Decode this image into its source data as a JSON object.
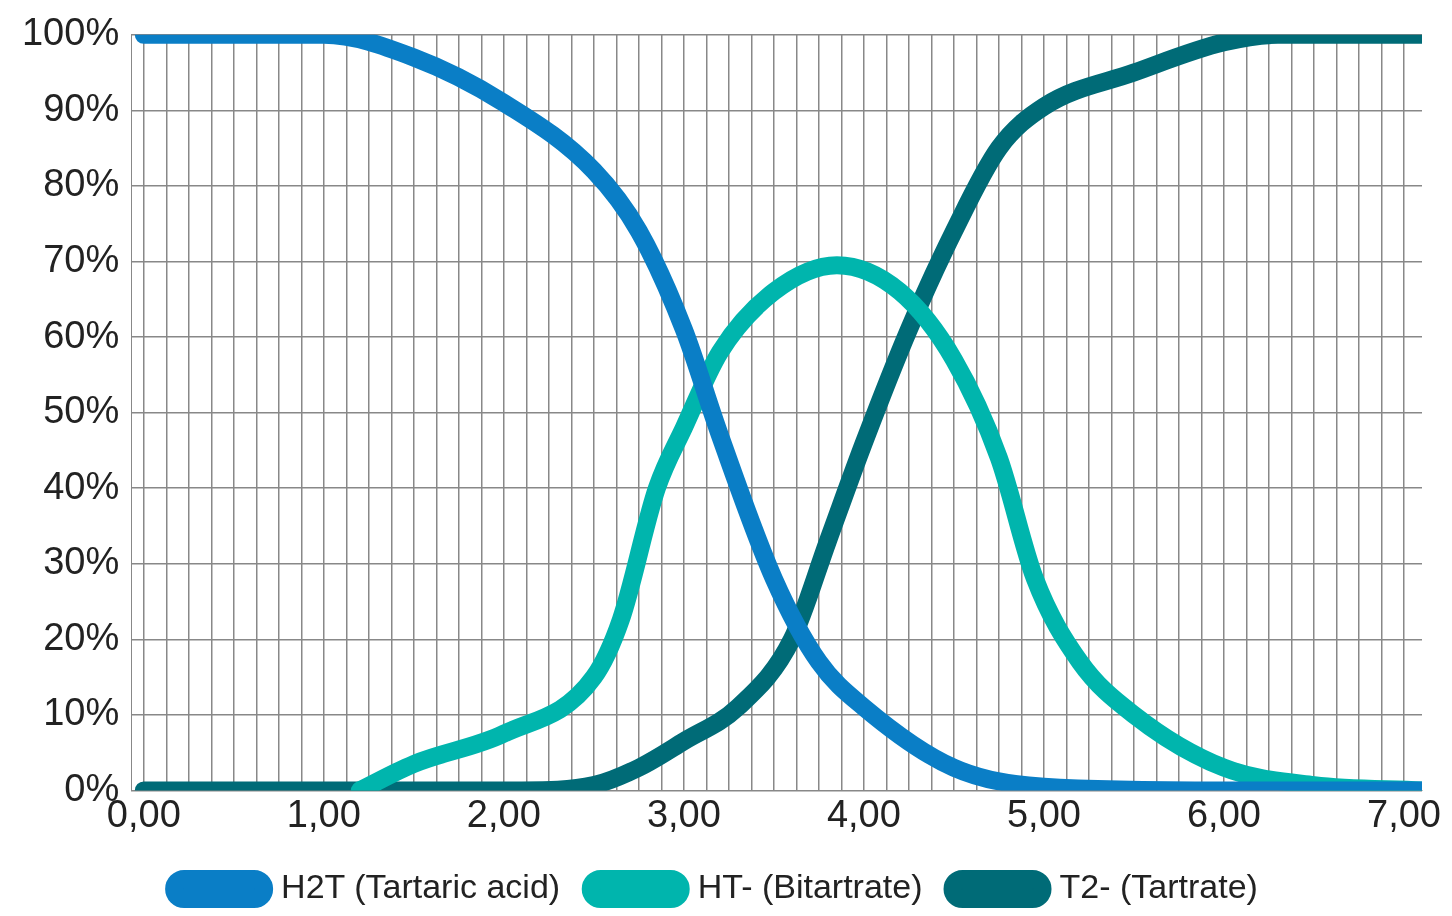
{
  "chart_data": {
    "type": "line",
    "xlim": [
      -0.07,
      7.1
    ],
    "ylim": [
      0,
      100
    ],
    "xticks": [
      {
        "value": 0,
        "label": "0,00"
      },
      {
        "value": 0.125,
        "label": null
      },
      {
        "value": 0.25,
        "label": null
      },
      {
        "value": 0.375,
        "label": null
      },
      {
        "value": 0.5,
        "label": null
      },
      {
        "value": 0.625,
        "label": null
      },
      {
        "value": 0.75,
        "label": null
      },
      {
        "value": 0.875,
        "label": null
      },
      {
        "value": 1,
        "label": "1,00"
      },
      {
        "value": 1.125,
        "label": null
      },
      {
        "value": 1.25,
        "label": null
      },
      {
        "value": 1.375,
        "label": null
      },
      {
        "value": 1.5,
        "label": null
      },
      {
        "value": 1.625,
        "label": null
      },
      {
        "value": 1.75,
        "label": null
      },
      {
        "value": 1.875,
        "label": null
      },
      {
        "value": 2,
        "label": "2,00"
      },
      {
        "value": 2.125,
        "label": null
      },
      {
        "value": 2.25,
        "label": null
      },
      {
        "value": 2.375,
        "label": null
      },
      {
        "value": 2.5,
        "label": null
      },
      {
        "value": 2.625,
        "label": null
      },
      {
        "value": 2.75,
        "label": null
      },
      {
        "value": 2.875,
        "label": null
      },
      {
        "value": 3,
        "label": "3,00"
      },
      {
        "value": 3.125,
        "label": null
      },
      {
        "value": 3.25,
        "label": null
      },
      {
        "value": 3.375,
        "label": null
      },
      {
        "value": 3.5,
        "label": null
      },
      {
        "value": 3.625,
        "label": null
      },
      {
        "value": 3.75,
        "label": null
      },
      {
        "value": 3.875,
        "label": null
      },
      {
        "value": 4,
        "label": "4,00"
      },
      {
        "value": 4.125,
        "label": null
      },
      {
        "value": 4.25,
        "label": null
      },
      {
        "value": 4.375,
        "label": null
      },
      {
        "value": 4.5,
        "label": null
      },
      {
        "value": 4.625,
        "label": null
      },
      {
        "value": 4.75,
        "label": null
      },
      {
        "value": 4.875,
        "label": null
      },
      {
        "value": 5,
        "label": "5,00"
      },
      {
        "value": 5.125,
        "label": null
      },
      {
        "value": 5.25,
        "label": null
      },
      {
        "value": 5.375,
        "label": null
      },
      {
        "value": 5.5,
        "label": null
      },
      {
        "value": 5.625,
        "label": null
      },
      {
        "value": 5.75,
        "label": null
      },
      {
        "value": 5.875,
        "label": null
      },
      {
        "value": 6,
        "label": "6,00"
      },
      {
        "value": 6.125,
        "label": null
      },
      {
        "value": 6.25,
        "label": null
      },
      {
        "value": 6.375,
        "label": null
      },
      {
        "value": 6.5,
        "label": null
      },
      {
        "value": 6.625,
        "label": null
      },
      {
        "value": 6.75,
        "label": null
      },
      {
        "value": 6.875,
        "label": null
      },
      {
        "value": 7,
        "label": "7,00"
      }
    ],
    "yticks": [
      {
        "value": 0,
        "label": "0%"
      },
      {
        "value": 10,
        "label": "10%"
      },
      {
        "value": 20,
        "label": "20%"
      },
      {
        "value": 30,
        "label": "30%"
      },
      {
        "value": 40,
        "label": "40%"
      },
      {
        "value": 50,
        "label": "50%"
      },
      {
        "value": 60,
        "label": "60%"
      },
      {
        "value": 70,
        "label": "70%"
      },
      {
        "value": 80,
        "label": "80%"
      },
      {
        "value": 90,
        "label": "90%"
      },
      {
        "value": 100,
        "label": "100%"
      }
    ],
    "grid": true,
    "legend": "bottom",
    "marker": "none",
    "line_style": "solid",
    "series": [
      {
        "name": "H2T (Tartaric acid)",
        "color": "#0a7ec6",
        "x": [
          0,
          1,
          1.5,
          2,
          2.5,
          2.75,
          3,
          3.2,
          3.5,
          3.75,
          4,
          4.5,
          5,
          6,
          7.1
        ],
        "values": [
          100,
          100,
          97,
          91,
          82,
          74,
          61,
          47,
          28,
          17,
          11,
          3,
          0.5,
          0,
          0
        ]
      },
      {
        "name": "HT- (Bitartrate)",
        "color": "#00b5ad",
        "x": [
          1.2,
          1.5,
          2,
          2.5,
          2.65,
          2.85,
          3,
          3.2,
          3.5,
          3.85,
          4.2,
          4.5,
          4.75,
          4.95,
          5.2,
          5.5,
          6,
          6.5,
          7.1
        ],
        "values": [
          0,
          3.5,
          7.5,
          15,
          22.6,
          40,
          48,
          58,
          66,
          69.5,
          66,
          57,
          44,
          28,
          17,
          10,
          3,
          0.7,
          0
        ]
      },
      {
        "name": "T2- (Tartrate)",
        "color": "#006b77",
        "x": [
          0,
          2.1,
          2.5,
          2.75,
          3,
          3.3,
          3.6,
          3.8,
          4,
          4.25,
          4.5,
          4.75,
          5,
          5.5,
          6,
          6.3,
          7.1
        ],
        "values": [
          0,
          0,
          0.7,
          3,
          6.5,
          11,
          20,
          33,
          46,
          61,
          74,
          85,
          90.5,
          95,
          99,
          100,
          100
        ]
      }
    ]
  }
}
